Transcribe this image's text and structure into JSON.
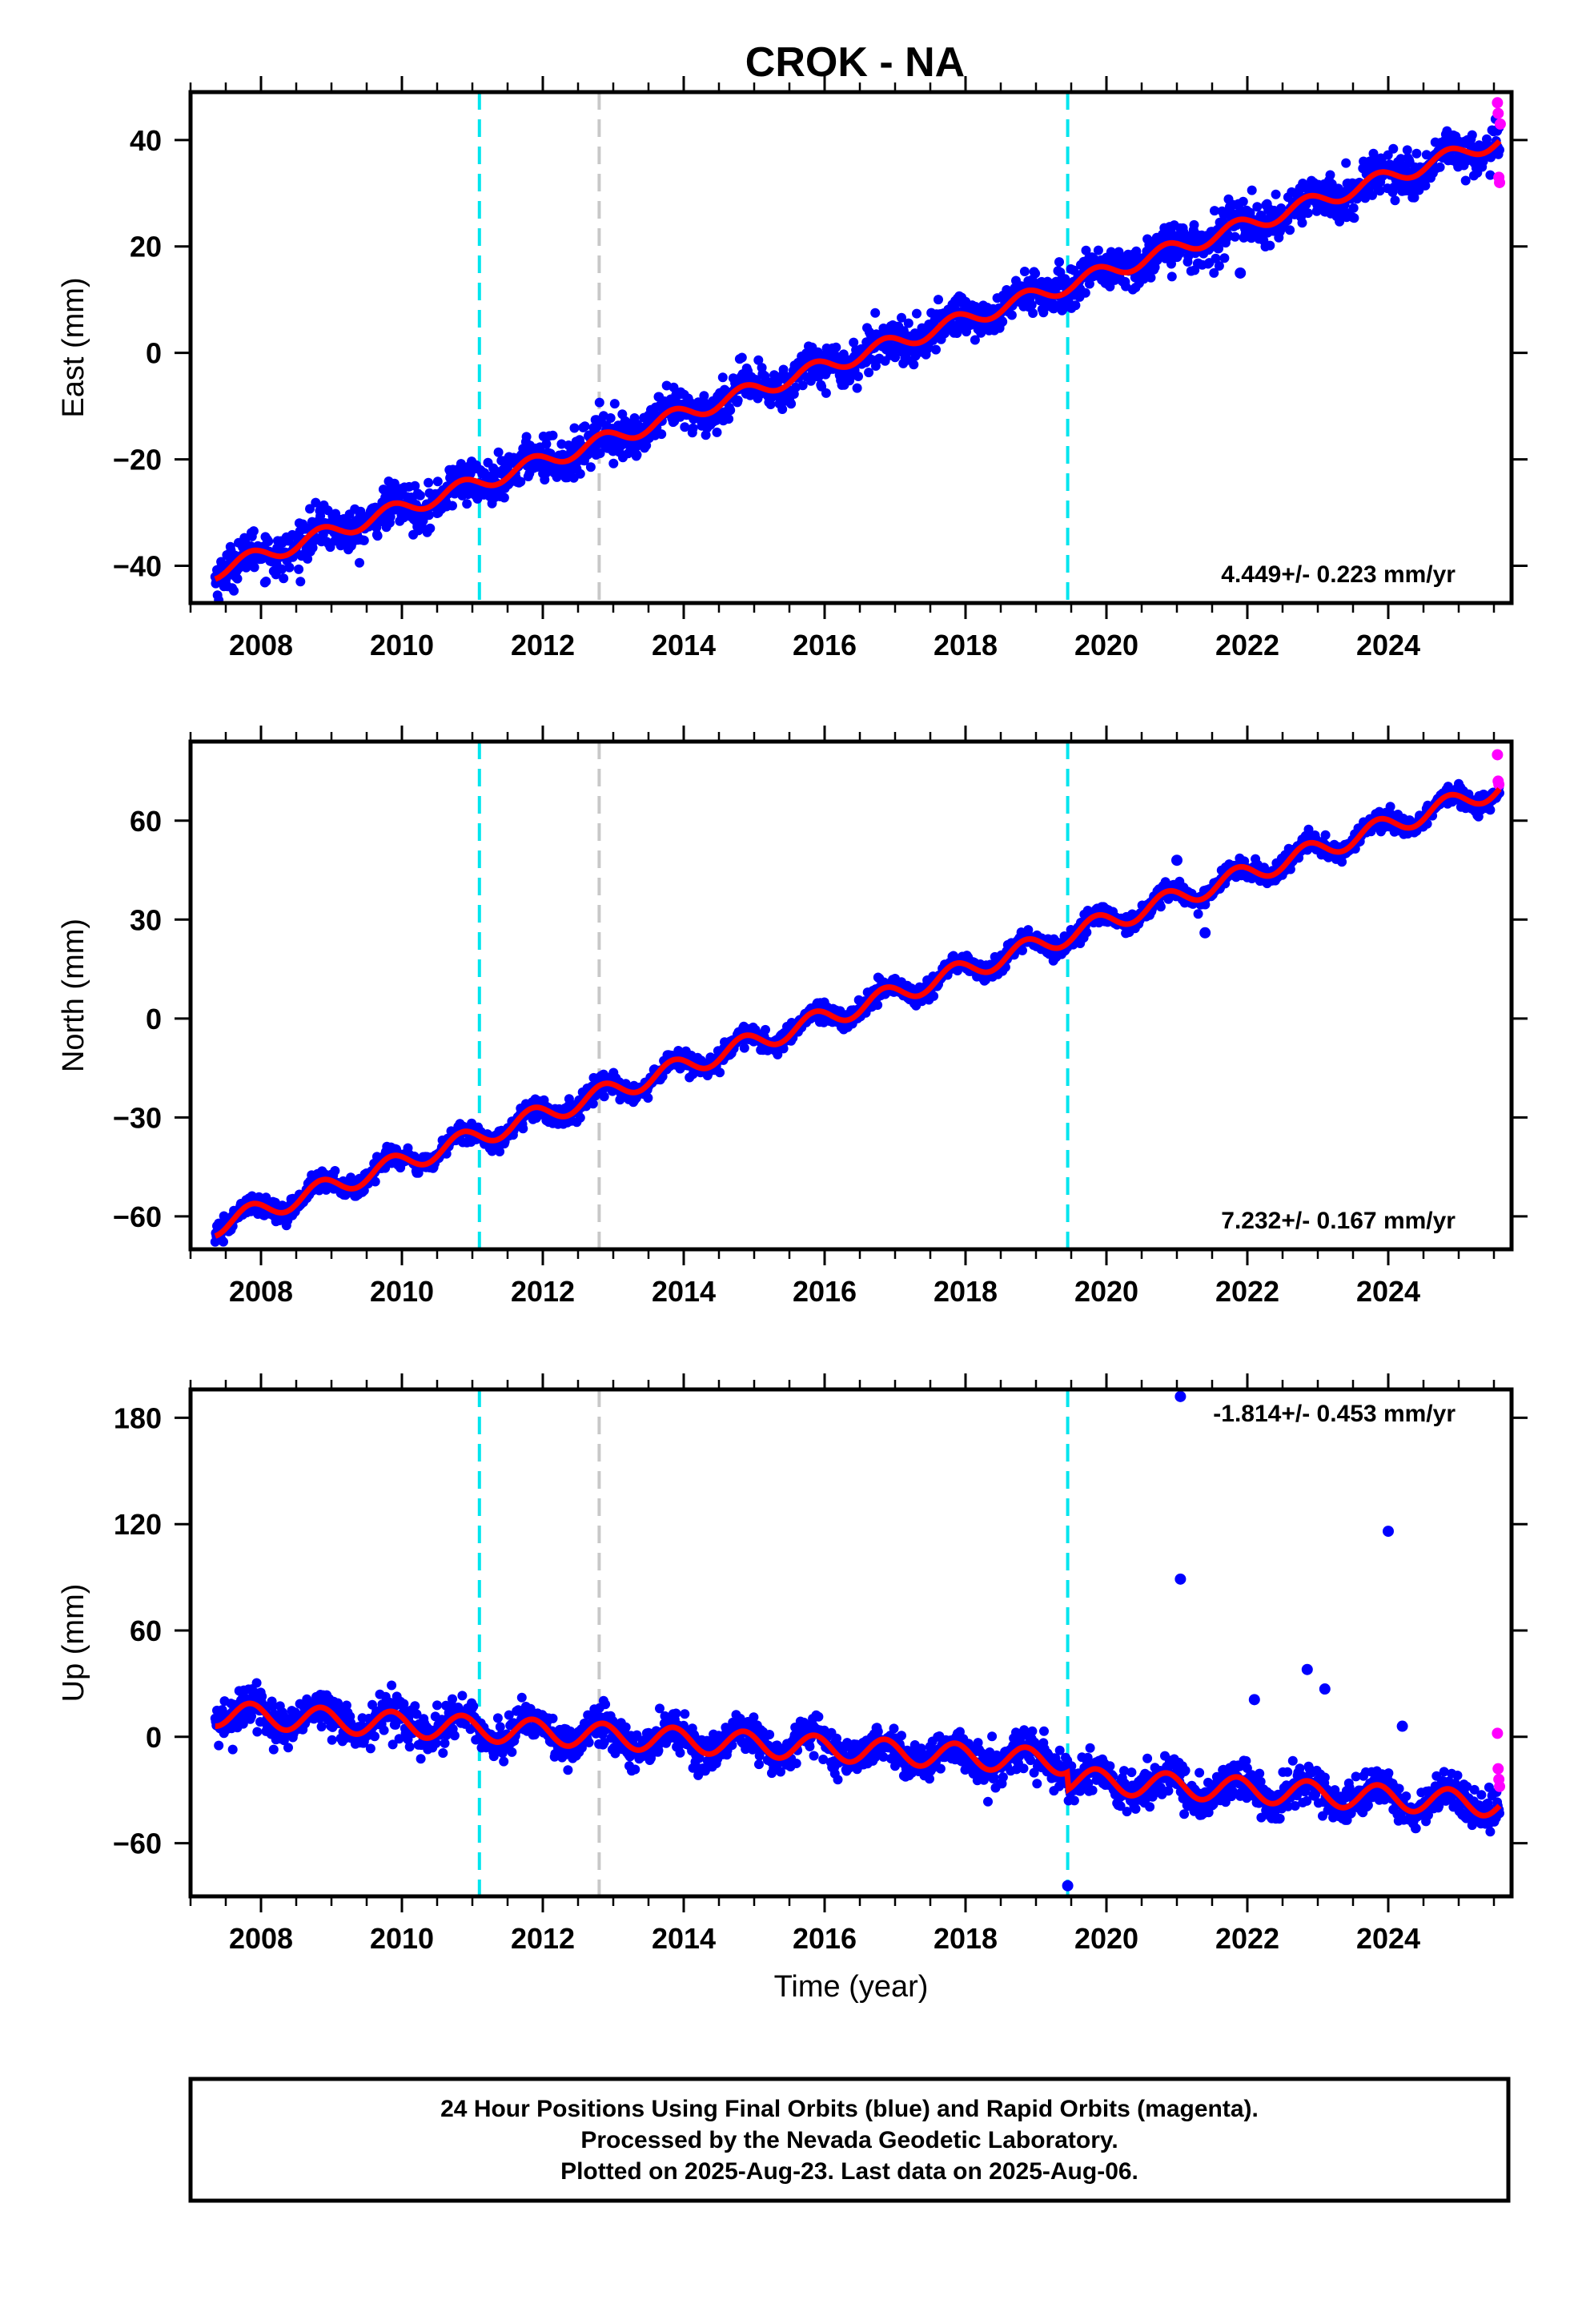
{
  "title": "CROK - NA",
  "xlabel": "Time (year)",
  "footer": {
    "line1": "24 Hour Positions Using Final Orbits (blue) and Rapid Orbits (magenta).",
    "line2": "Processed by the Nevada Geodetic Laboratory.",
    "line3": "Plotted on 2025-Aug-23. Last data on 2025-Aug-06."
  },
  "colors": {
    "final_orbits": "#0000ff",
    "rapid_orbits": "#ff00ff",
    "model_fit": "#ff0000",
    "equipment_change": "#00e5ee",
    "other_event": "#c8c8c8"
  },
  "chart_data": [
    {
      "type": "scatter",
      "component": "East",
      "ylabel": "East (mm)",
      "rate_label": "4.449+/- 0.223 mm/yr",
      "xlim": [
        2007.0,
        2025.75
      ],
      "ylim": [
        -47,
        49
      ],
      "xticks": [
        "2008",
        "2010",
        "2012",
        "2014",
        "2016",
        "2018",
        "2020",
        "2022",
        "2024"
      ],
      "yticks": [
        "−40",
        "−20",
        "0",
        "20",
        "40"
      ],
      "events": [
        {
          "x": 2011.1,
          "kind": "cyan"
        },
        {
          "x": 2012.8,
          "kind": "gray"
        },
        {
          "x": 2019.45,
          "kind": "cyan"
        }
      ],
      "series_start": 2007.35,
      "series_end": 2025.58,
      "trend": {
        "y0": -41,
        "y1": 40
      },
      "seasonal_amp": 1.5,
      "noise": 2.0,
      "steps": [],
      "outliers": [
        {
          "x": 2021.9,
          "y": 15
        }
      ],
      "rapid": [
        {
          "x": 2025.55,
          "y": 47
        },
        {
          "x": 2025.56,
          "y": 45
        },
        {
          "x": 2025.57,
          "y": 33
        },
        {
          "x": 2025.58,
          "y": 32
        },
        {
          "x": 2025.59,
          "y": 43
        }
      ]
    },
    {
      "type": "scatter",
      "component": "North",
      "ylabel": "North (mm)",
      "rate_label": "7.232+/- 0.167 mm/yr",
      "xlim": [
        2007.0,
        2025.75
      ],
      "ylim": [
        -70,
        84
      ],
      "xticks": [
        "2008",
        "2010",
        "2012",
        "2014",
        "2016",
        "2018",
        "2020",
        "2022",
        "2024"
      ],
      "yticks": [
        "−60",
        "−30",
        "0",
        "30",
        "60"
      ],
      "events": [
        {
          "x": 2011.1,
          "kind": "cyan"
        },
        {
          "x": 2012.8,
          "kind": "gray"
        },
        {
          "x": 2019.45,
          "kind": "cyan"
        }
      ],
      "series_start": 2007.35,
      "series_end": 2025.58,
      "trend": {
        "y0": -63,
        "y1": 70
      },
      "seasonal_amp": 3.0,
      "noise": 1.5,
      "steps": [],
      "outliers": [
        {
          "x": 2021.0,
          "y": 48
        },
        {
          "x": 2021.4,
          "y": 26
        }
      ],
      "rapid": [
        {
          "x": 2025.55,
          "y": 80
        },
        {
          "x": 2025.56,
          "y": 72
        },
        {
          "x": 2025.57,
          "y": 71
        }
      ]
    },
    {
      "type": "scatter",
      "component": "Up",
      "ylabel": "Up (mm)",
      "rate_label": "-1.814+/- 0.453 mm/yr",
      "xlim": [
        2007.0,
        2025.75
      ],
      "ylim": [
        -90,
        196
      ],
      "xticks": [
        "2008",
        "2010",
        "2012",
        "2014",
        "2016",
        "2018",
        "2020",
        "2022",
        "2024"
      ],
      "yticks": [
        "−60",
        "0",
        "60",
        "120",
        "180"
      ],
      "events": [
        {
          "x": 2011.1,
          "kind": "cyan"
        },
        {
          "x": 2012.8,
          "kind": "gray"
        },
        {
          "x": 2019.45,
          "kind": "cyan"
        }
      ],
      "series_start": 2007.35,
      "series_end": 2025.58,
      "trend": {
        "y0": 13,
        "y1": -28
      },
      "seasonal_amp": 7.0,
      "noise": 5.5,
      "steps": [
        {
          "x": 2019.45,
          "dy": -10
        }
      ],
      "outliers": [
        {
          "x": 2019.45,
          "y": -84
        },
        {
          "x": 2021.05,
          "y": 192
        },
        {
          "x": 2021.05,
          "y": 89
        },
        {
          "x": 2022.1,
          "y": 21
        },
        {
          "x": 2022.85,
          "y": 38
        },
        {
          "x": 2023.1,
          "y": 27
        },
        {
          "x": 2024.0,
          "y": 116
        },
        {
          "x": 2024.2,
          "y": 6
        }
      ],
      "rapid": [
        {
          "x": 2025.55,
          "y": 2
        },
        {
          "x": 2025.56,
          "y": -18
        },
        {
          "x": 2025.57,
          "y": -24
        },
        {
          "x": 2025.58,
          "y": -28
        }
      ]
    }
  ]
}
